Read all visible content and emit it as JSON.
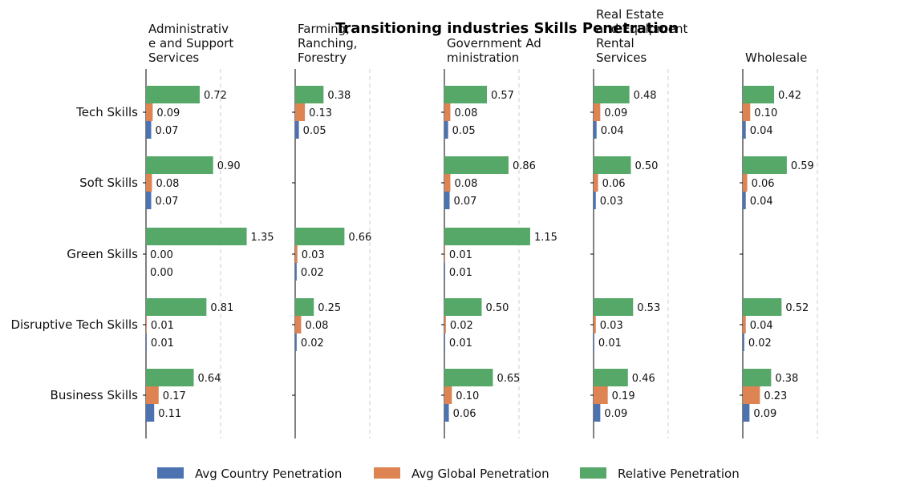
{
  "chart_data": {
    "type": "bar",
    "orientation": "horizontal",
    "title": "Transitioning industries Skills Penetration",
    "categories": [
      "Tech Skills",
      "Soft Skills",
      "Green Skills",
      "Disruptive Tech Skills",
      "Business Skills"
    ],
    "series_names": [
      "Avg Country Penetration",
      "Avg Global Penetration",
      "Relative Penetration"
    ],
    "colors": {
      "Avg Country Penetration": "#4c72b0",
      "Avg Global Penetration": "#dd8452",
      "Relative Penetration": "#55a868"
    },
    "xlim": [
      0,
      2
    ],
    "reference_line": 1,
    "legend_position": "bottom-center",
    "panels": [
      {
        "title_lines": [
          "Administrativ",
          "e and Support",
          "Services"
        ],
        "values": {
          "Tech Skills": [
            0.07,
            0.09,
            0.72
          ],
          "Soft Skills": [
            0.07,
            0.08,
            0.9
          ],
          "Green Skills": [
            0.0,
            0.0,
            1.35
          ],
          "Disruptive Tech Skills": [
            0.01,
            0.01,
            0.81
          ],
          "Business Skills": [
            0.11,
            0.17,
            0.64
          ]
        }
      },
      {
        "title_lines": [
          "Farming,",
          "Ranching,",
          "Forestry"
        ],
        "values": {
          "Tech Skills": [
            0.05,
            0.13,
            0.38
          ],
          "Green Skills": [
            0.02,
            0.03,
            0.66
          ],
          "Disruptive Tech Skills": [
            0.02,
            0.08,
            0.25
          ]
        }
      },
      {
        "title_lines": [
          "Government Ad",
          "ministration"
        ],
        "values": {
          "Tech Skills": [
            0.05,
            0.08,
            0.57
          ],
          "Soft Skills": [
            0.07,
            0.08,
            0.86
          ],
          "Green Skills": [
            0.01,
            0.01,
            1.15
          ],
          "Disruptive Tech Skills": [
            0.01,
            0.02,
            0.5
          ],
          "Business Skills": [
            0.06,
            0.1,
            0.65
          ]
        }
      },
      {
        "title_lines": [
          "Real Estate",
          "and Equipment",
          "Rental",
          "Services"
        ],
        "values": {
          "Tech Skills": [
            0.04,
            0.09,
            0.48
          ],
          "Soft Skills": [
            0.03,
            0.06,
            0.5
          ],
          "Disruptive Tech Skills": [
            0.01,
            0.03,
            0.53
          ],
          "Business Skills": [
            0.09,
            0.19,
            0.46
          ]
        }
      },
      {
        "title_lines": [
          "Wholesale"
        ],
        "values": {
          "Tech Skills": [
            0.04,
            0.1,
            0.42
          ],
          "Soft Skills": [
            0.04,
            0.06,
            0.59
          ],
          "Disruptive Tech Skills": [
            0.02,
            0.04,
            0.52
          ],
          "Business Skills": [
            0.09,
            0.23,
            0.38
          ]
        }
      }
    ]
  }
}
